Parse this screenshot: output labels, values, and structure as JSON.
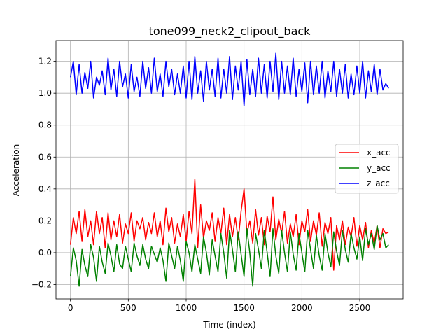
{
  "chart_data": {
    "type": "line",
    "title": "tone099_neck2_clipout_back",
    "xlabel": "Time (index)",
    "ylabel": "Acceleration",
    "xlim": [
      -125,
      2875
    ],
    "ylim": [
      -0.29,
      1.33
    ],
    "xticks": [
      0,
      500,
      1000,
      1500,
      2000,
      2500
    ],
    "yticks": [
      -0.2,
      0.0,
      0.2,
      0.4,
      0.6,
      0.8,
      1.0,
      1.2
    ],
    "xtick_labels": [
      "0",
      "500",
      "1000",
      "1500",
      "2000",
      "2500"
    ],
    "ytick_labels": [
      "−0.2",
      "0.0",
      "0.2",
      "0.4",
      "0.6",
      "0.8",
      "1.0",
      "1.2"
    ],
    "grid": true,
    "legend_position": "center-right",
    "series": [
      {
        "name": "x_acc",
        "color": "#ff0000",
        "x": [
          0,
          25,
          50,
          75,
          100,
          125,
          150,
          175,
          200,
          225,
          250,
          275,
          300,
          325,
          350,
          375,
          400,
          425,
          450,
          475,
          500,
          525,
          550,
          575,
          600,
          625,
          650,
          675,
          700,
          725,
          750,
          775,
          800,
          825,
          850,
          875,
          900,
          925,
          950,
          975,
          1000,
          1025,
          1050,
          1075,
          1100,
          1125,
          1150,
          1175,
          1200,
          1225,
          1250,
          1275,
          1300,
          1325,
          1350,
          1375,
          1400,
          1425,
          1450,
          1475,
          1500,
          1525,
          1550,
          1575,
          1600,
          1625,
          1650,
          1675,
          1700,
          1725,
          1750,
          1775,
          1800,
          1825,
          1850,
          1875,
          1900,
          1925,
          1950,
          1975,
          2000,
          2025,
          2050,
          2075,
          2100,
          2125,
          2150,
          2175,
          2200,
          2225,
          2250,
          2275,
          2300,
          2325,
          2350,
          2375,
          2400,
          2425,
          2450,
          2475,
          2500,
          2525,
          2550,
          2575,
          2600,
          2625,
          2650,
          2675,
          2700,
          2725,
          2750
        ],
        "values": [
          0.05,
          0.22,
          0.12,
          0.26,
          0.07,
          0.27,
          0.1,
          0.2,
          0.05,
          0.26,
          0.12,
          0.22,
          0.03,
          0.25,
          0.08,
          0.2,
          0.1,
          0.24,
          0.06,
          0.18,
          0.12,
          0.25,
          0.07,
          0.2,
          0.15,
          0.22,
          0.08,
          0.19,
          0.12,
          0.25,
          0.1,
          0.2,
          0.05,
          0.28,
          0.13,
          0.22,
          0.06,
          0.18,
          0.1,
          0.24,
          0.07,
          0.26,
          0.12,
          0.46,
          0.03,
          0.3,
          0.09,
          0.2,
          0.14,
          0.25,
          0.07,
          0.22,
          0.12,
          0.28,
          0.05,
          0.24,
          0.1,
          0.22,
          0.08,
          0.26,
          0.4,
          0.12,
          0.2,
          0.06,
          0.27,
          0.11,
          0.22,
          0.05,
          0.23,
          0.13,
          0.35,
          0.08,
          0.21,
          0.12,
          0.26,
          0.06,
          0.18,
          0.1,
          0.24,
          0.05,
          0.2,
          0.13,
          0.27,
          0.07,
          0.2,
          0.11,
          0.25,
          0.04,
          0.19,
          0.12,
          0.22,
          -0.11,
          0.17,
          0.08,
          0.2,
          0.05,
          0.16,
          0.1,
          0.22,
          0.04,
          0.17,
          0.08,
          0.19,
          0.03,
          0.14,
          0.06,
          0.17,
          0.03,
          0.15,
          0.12,
          0.13
        ]
      },
      {
        "name": "y_acc",
        "color": "#008000",
        "x": [
          0,
          25,
          50,
          75,
          100,
          125,
          150,
          175,
          200,
          225,
          250,
          275,
          300,
          325,
          350,
          375,
          400,
          425,
          450,
          475,
          500,
          525,
          550,
          575,
          600,
          625,
          650,
          675,
          700,
          725,
          750,
          775,
          800,
          825,
          850,
          875,
          900,
          925,
          950,
          975,
          1000,
          1025,
          1050,
          1075,
          1100,
          1125,
          1150,
          1175,
          1200,
          1225,
          1250,
          1275,
          1300,
          1325,
          1350,
          1375,
          1400,
          1425,
          1450,
          1475,
          1500,
          1525,
          1550,
          1575,
          1600,
          1625,
          1650,
          1675,
          1700,
          1725,
          1750,
          1775,
          1800,
          1825,
          1850,
          1875,
          1900,
          1925,
          1950,
          1975,
          2000,
          2025,
          2050,
          2075,
          2100,
          2125,
          2150,
          2175,
          2200,
          2225,
          2250,
          2275,
          2300,
          2325,
          2350,
          2375,
          2400,
          2425,
          2450,
          2475,
          2500,
          2525,
          2550,
          2575,
          2600,
          2625,
          2650,
          2675,
          2700,
          2725,
          2750
        ],
        "values": [
          -0.15,
          0.03,
          -0.05,
          -0.21,
          0.02,
          -0.08,
          -0.15,
          0.05,
          -0.03,
          -0.18,
          0.04,
          -0.06,
          -0.13,
          0.06,
          -0.02,
          -0.12,
          0.05,
          -0.07,
          -0.1,
          0.04,
          -0.04,
          -0.12,
          0.06,
          -0.02,
          -0.08,
          0.05,
          -0.04,
          -0.1,
          0.04,
          -0.01,
          -0.06,
          0.03,
          -0.05,
          -0.18,
          0.06,
          -0.02,
          -0.1,
          0.04,
          -0.05,
          -0.18,
          0.07,
          0.0,
          -0.12,
          0.05,
          -0.04,
          -0.13,
          0.1,
          0.0,
          -0.14,
          0.08,
          -0.02,
          -0.12,
          0.12,
          0.0,
          -0.16,
          0.14,
          0.02,
          -0.12,
          0.13,
          -0.01,
          -0.15,
          0.15,
          0.0,
          -0.21,
          0.12,
          0.02,
          -0.1,
          0.14,
          0.0,
          -0.15,
          0.15,
          -0.02,
          -0.13,
          0.14,
          0.0,
          -0.12,
          0.13,
          -0.01,
          -0.11,
          0.12,
          0.0,
          -0.12,
          0.14,
          0.02,
          -0.1,
          0.11,
          -0.02,
          -0.11,
          0.12,
          0.0,
          -0.09,
          0.13,
          0.01,
          -0.08,
          0.14,
          0.02,
          -0.06,
          0.12,
          0.03,
          -0.04,
          0.1,
          -0.05,
          0.15,
          0.05,
          0.12,
          0.02,
          0.17,
          0.08,
          0.12,
          0.03,
          0.05
        ]
      },
      {
        "name": "z_acc",
        "color": "#0000ff",
        "x": [
          0,
          25,
          50,
          75,
          100,
          125,
          150,
          175,
          200,
          225,
          250,
          275,
          300,
          325,
          350,
          375,
          400,
          425,
          450,
          475,
          500,
          525,
          550,
          575,
          600,
          625,
          650,
          675,
          700,
          725,
          750,
          775,
          800,
          825,
          850,
          875,
          900,
          925,
          950,
          975,
          1000,
          1025,
          1050,
          1075,
          1100,
          1125,
          1150,
          1175,
          1200,
          1225,
          1250,
          1275,
          1300,
          1325,
          1350,
          1375,
          1400,
          1425,
          1450,
          1475,
          1500,
          1525,
          1550,
          1575,
          1600,
          1625,
          1650,
          1675,
          1700,
          1725,
          1750,
          1775,
          1800,
          1825,
          1850,
          1875,
          1900,
          1925,
          1950,
          1975,
          2000,
          2025,
          2050,
          2075,
          2100,
          2125,
          2150,
          2175,
          2200,
          2225,
          2250,
          2275,
          2300,
          2325,
          2350,
          2375,
          2400,
          2425,
          2450,
          2475,
          2500,
          2525,
          2550,
          2575,
          2600,
          2625,
          2650,
          2675,
          2700,
          2725,
          2750
        ],
        "values": [
          1.1,
          1.2,
          0.99,
          1.18,
          1.0,
          1.13,
          1.03,
          1.2,
          0.97,
          1.1,
          1.05,
          1.14,
          0.99,
          1.22,
          1.02,
          1.15,
          0.98,
          1.2,
          1.04,
          1.12,
          0.97,
          1.18,
          1.01,
          1.1,
          0.98,
          1.2,
          1.03,
          1.16,
          1.0,
          1.22,
          1.01,
          1.12,
          0.98,
          1.2,
          1.04,
          1.15,
          0.99,
          1.12,
          1.0,
          1.17,
          0.97,
          1.2,
          0.96,
          1.23,
          1.0,
          1.14,
          0.95,
          1.2,
          1.02,
          1.15,
          0.98,
          1.22,
          0.97,
          1.15,
          1.0,
          1.23,
          0.96,
          1.17,
          1.02,
          1.2,
          0.92,
          1.21,
          0.99,
          1.15,
          0.98,
          1.22,
          1.0,
          1.18,
          0.97,
          1.2,
          1.01,
          1.25,
          0.96,
          1.2,
          1.0,
          1.17,
          0.99,
          1.22,
          0.98,
          1.15,
          1.01,
          1.19,
          0.94,
          1.2,
          0.99,
          1.17,
          1.0,
          1.2,
          0.97,
          1.14,
          1.01,
          1.2,
          0.98,
          1.15,
          1.0,
          1.18,
          0.97,
          1.12,
          0.99,
          1.17,
          1.0,
          1.2,
          0.97,
          1.14,
          1.01,
          1.18,
          0.99,
          1.15,
          1.02,
          1.06,
          1.03
        ]
      }
    ]
  }
}
